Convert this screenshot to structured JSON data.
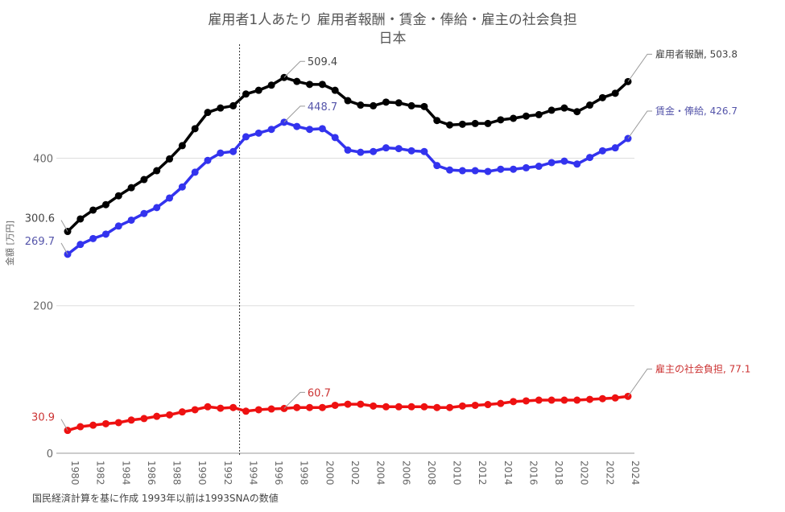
{
  "chart_data": {
    "type": "line",
    "title": "雇用者1人あたり 雇用者報酬・賃金・俸給・雇主の社会負担",
    "subtitle": "日本",
    "xlabel": "",
    "ylabel": "金額 [万円]",
    "footnote": "国民経済計算を基に作成 1993年以前は1993SNAの数値",
    "ylim": [
      0,
      614
    ],
    "yticks": [
      "0",
      "200",
      "400"
    ],
    "ytick_values": [
      0,
      200,
      400
    ],
    "xticks": [
      "1980",
      "1982",
      "1984",
      "1986",
      "1988",
      "1990",
      "1992",
      "1994",
      "1996",
      "1998",
      "2000",
      "2002",
      "2004",
      "2006",
      "2008",
      "2010",
      "2012",
      "2014",
      "2016",
      "2018",
      "2020",
      "2022",
      "2024"
    ],
    "x_start": 1980,
    "x_end": 2024,
    "grid": true,
    "divider_year": 1993.5,
    "series": [
      {
        "name": "雇用者報酬",
        "color": "#000000",
        "label_color": "#444444",
        "values": [
          300.6,
          317.6,
          329.6,
          337,
          349,
          360,
          371,
          383,
          399,
          417,
          440,
          462,
          468,
          471,
          487,
          492,
          499,
          509.4,
          504,
          500,
          500,
          492,
          478,
          472,
          471,
          476,
          475,
          471,
          470,
          451,
          445,
          446,
          447,
          447,
          452,
          454,
          457,
          459,
          465,
          468,
          463,
          472,
          482,
          488,
          503.8
        ],
        "start_label": "300.6",
        "peak_label": "509.4",
        "peak_year": 1997,
        "end_label": "雇用者報酬, 503.8"
      },
      {
        "name": "賃金・俸給",
        "color": "#3333ee",
        "label_color": "#5555aa",
        "values": [
          269.7,
          283,
          291,
          297,
          308,
          316,
          325,
          333,
          346,
          361,
          381,
          397,
          407,
          409,
          429,
          434,
          439,
          448.7,
          443,
          439,
          440,
          428,
          411,
          408,
          409,
          414,
          413,
          410,
          409,
          390,
          384,
          383,
          383,
          382,
          385,
          385,
          387,
          389,
          394,
          396,
          392,
          401,
          410,
          414,
          426.7
        ],
        "start_label": "269.7",
        "peak_label": "448.7",
        "peak_year": 1997,
        "end_label": "賃金・俸給, 426.7"
      },
      {
        "name": "雇主の社会負担",
        "color": "#ee1111",
        "label_color": "#cc3333",
        "values": [
          30.9,
          36,
          38,
          40,
          41.5,
          45,
          47,
          50,
          52,
          56,
          59,
          63,
          61,
          62,
          57,
          59,
          60,
          60.7,
          62,
          62,
          62,
          65,
          66.5,
          66.5,
          64,
          63,
          63,
          63,
          63,
          62,
          62,
          64,
          65,
          66,
          67.5,
          70,
          71,
          72,
          72,
          72,
          72,
          73,
          74,
          75,
          77.1
        ],
        "start_label": "30.9",
        "peak_label": "60.7",
        "peak_year": 1997,
        "end_label": "雇主の社会負担, 77.1"
      }
    ]
  }
}
